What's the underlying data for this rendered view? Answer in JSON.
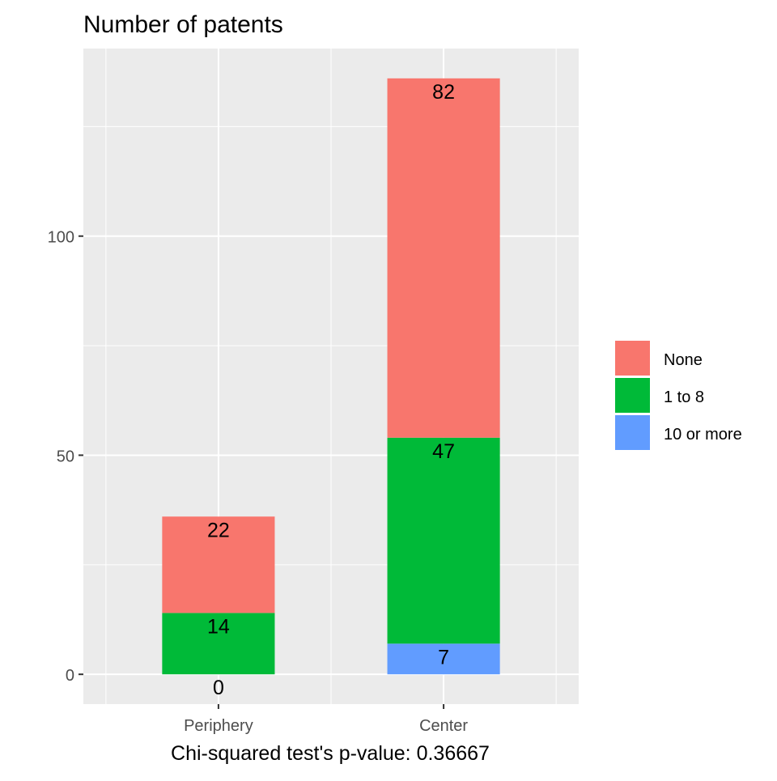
{
  "chart_data": {
    "type": "bar",
    "stacked": true,
    "title": "Number of patents",
    "xlabel": "Chi-squared test's p-value: 0.36667",
    "ylabel": "",
    "categories": [
      "Periphery",
      "Center"
    ],
    "series": [
      {
        "name": "10 or more",
        "values": [
          0,
          7
        ],
        "color": "#619CFF"
      },
      {
        "name": "1 to 8",
        "values": [
          14,
          47
        ],
        "color": "#00BA38"
      },
      {
        "name": "None",
        "values": [
          22,
          82
        ],
        "color": "#F8766D"
      }
    ],
    "legend_order": [
      "None",
      "1 to 8",
      "10 or more"
    ],
    "legend_position": "right",
    "y_ticks": [
      0,
      50,
      100
    ],
    "ylim": [
      -6.8,
      142.8
    ],
    "grid": true,
    "panel_background": "#EBEBEB",
    "grid_color": "#FFFFFF"
  }
}
